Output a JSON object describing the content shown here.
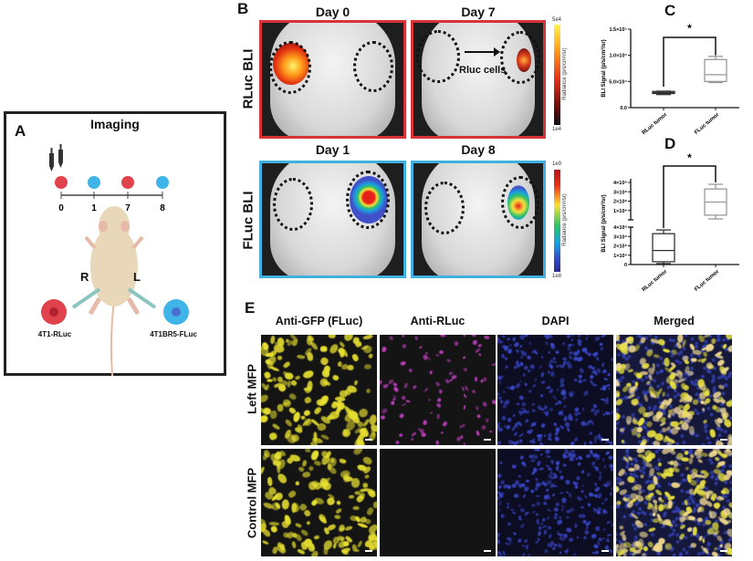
{
  "panel_a": {
    "label": "A",
    "title": "Imaging",
    "timeline_days": [
      "0",
      "1",
      "7",
      "8"
    ],
    "side_right": "R",
    "side_left": "L",
    "cell_right": "4T1-RLuc",
    "cell_left": "4T1BR5-FLuc",
    "colors": {
      "rluc": "#e0434b",
      "fluc": "#3fb4e8"
    }
  },
  "panel_b": {
    "label": "B",
    "rows": [
      {
        "label": "RLuc BLI",
        "border": "#d9333a",
        "days": [
          "Day 0",
          "Day 7"
        ],
        "colorbar": {
          "max": "5e4",
          "min": "1e4",
          "title": "Radiance (p/s/cm²/sr)"
        }
      },
      {
        "label": "FLuc BLI",
        "border": "#3fb0e0",
        "days": [
          "Day 1",
          "Day 8"
        ],
        "colorbar": {
          "max": "1e9",
          "min": "1e8",
          "title": "Radiance (p/s/cm²/sr)"
        }
      }
    ],
    "annotation": "Rluc cells"
  },
  "chart_data": [
    {
      "panel": "C",
      "type": "box",
      "ylabel": "BLI Signal (p/s/cm²/sr)",
      "categories": [
        "RLuc tumor",
        "FLuc tumor"
      ],
      "ylim": [
        0,
        150000
      ],
      "yticks": [
        {
          "v": 0,
          "label": "0.0"
        },
        {
          "v": 50000,
          "label": "5.0×10⁴"
        },
        {
          "v": 100000,
          "label": "1.0×10⁵"
        },
        {
          "v": 150000,
          "label": "1.5×10⁵"
        }
      ],
      "boxes": [
        {
          "min": 25000,
          "q1": 27000,
          "median": 29000,
          "q3": 31000,
          "max": 31500,
          "color": "#333333"
        },
        {
          "min": 48000,
          "q1": 50000,
          "median": 63000,
          "q3": 92000,
          "max": 98000,
          "color": "#999999"
        }
      ],
      "significance": "*"
    },
    {
      "panel": "D",
      "type": "box",
      "ylabel": "BLI Signal (p/s/cm²/sr)",
      "categories": [
        "RLuc tumor",
        "FLuc tumor"
      ],
      "broken_axis": true,
      "lower_ylim": [
        0,
        4000000
      ],
      "upper_ylim": [
        0,
        400000000
      ],
      "lower_yticks": [
        {
          "v": 0,
          "label": "0"
        },
        {
          "v": 1000000,
          "label": "1×10⁶"
        },
        {
          "v": 2000000,
          "label": "2×10⁶"
        },
        {
          "v": 3000000,
          "label": "3×10⁶"
        },
        {
          "v": 4000000,
          "label": "4×10⁶"
        }
      ],
      "upper_yticks": [
        {
          "v": 100000000,
          "label": "1×10⁸"
        },
        {
          "v": 200000000,
          "label": "2×10⁸"
        },
        {
          "v": 300000000,
          "label": "3×10⁸"
        },
        {
          "v": 400000000,
          "label": "4×10⁸"
        }
      ],
      "boxes": [
        {
          "min": 100000,
          "q1": 300000,
          "median": 1500000,
          "q3": 3300000,
          "max": 3700000,
          "color": "#333333",
          "segment": "lower"
        },
        {
          "min": 10000000,
          "q1": 50000000,
          "median": 190000000,
          "q3": 330000000,
          "max": 380000000,
          "color": "#999999",
          "segment": "upper"
        }
      ],
      "significance": "*"
    }
  ],
  "panel_e": {
    "label": "E",
    "columns": [
      "Anti-GFP (FLuc)",
      "Anti-RLuc",
      "DAPI",
      "Merged"
    ],
    "rows": [
      "Left MFP",
      "Control MFP"
    ]
  }
}
